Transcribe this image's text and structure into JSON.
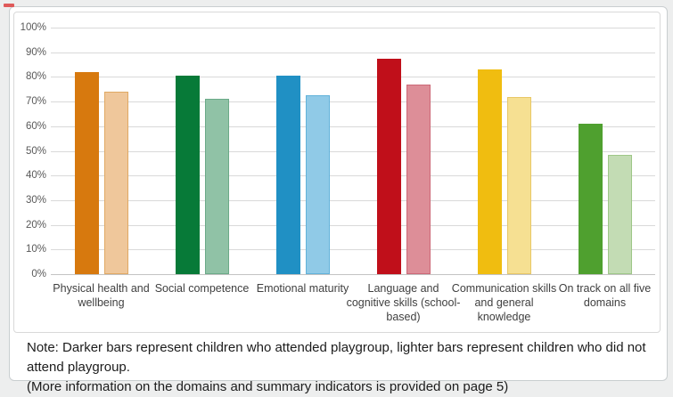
{
  "note": {
    "line1": "Note: Darker bars represent children who attended playgroup, lighter bars represent children who did not attend playgroup.",
    "line2": "(More information on the domains and summary indicators is provided on page 5)"
  },
  "red_mark_color": "#df5a5a",
  "chart_data": {
    "type": "bar",
    "title": "",
    "xlabel": "",
    "ylabel": "",
    "categories": [
      "Physical health and wellbeing",
      "Social competence",
      "Emotional maturity",
      "Language and cognitive skills (school-based)",
      "Communication skills and general knowledge",
      "On track on all five domains"
    ],
    "series": [
      {
        "name": "Attended playgroup (darker bars)",
        "values": [
          82,
          80.5,
          80.5,
          87.5,
          83,
          61
        ],
        "fill_colors": [
          "#D7790E",
          "#077A38",
          "#2090C4",
          "#C00F1A",
          "#F0BD10",
          "#4FA02F"
        ]
      },
      {
        "name": "Did not attend playgroup (lighter bars)",
        "values": [
          74,
          71,
          72.5,
          77,
          72,
          48.5
        ],
        "fill_colors": [
          "#EFC79B",
          "#90C2A6",
          "#90CAE7",
          "#DD8E98",
          "#F6E092",
          "#C3DCB4"
        ],
        "border_colors": [
          "#E0A964",
          "#6BAA88",
          "#62B2DA",
          "#CC6977",
          "#E8C766",
          "#9EC787"
        ]
      }
    ],
    "y_ticks": [
      "0%",
      "10%",
      "20%",
      "30%",
      "40%",
      "50%",
      "60%",
      "70%",
      "80%",
      "90%",
      "100%"
    ],
    "ylim": [
      0,
      100
    ],
    "grid": true,
    "legend": "none"
  }
}
